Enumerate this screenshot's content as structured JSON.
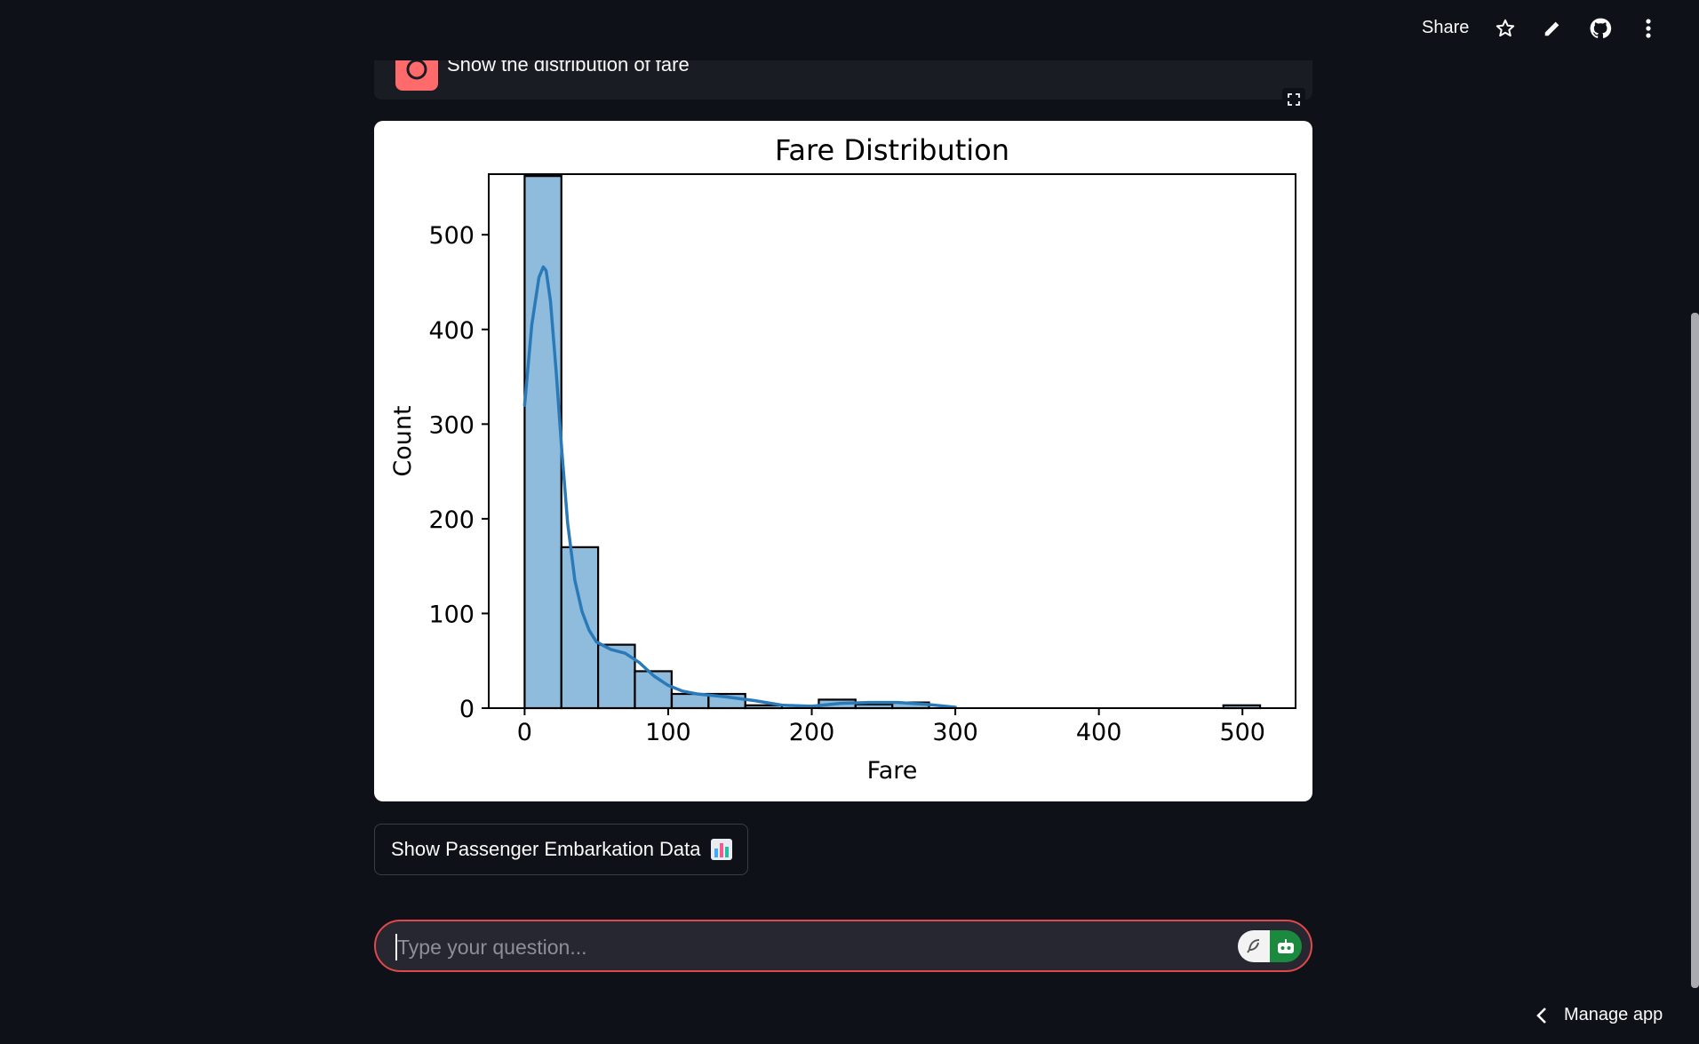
{
  "header": {
    "share_label": "Share",
    "icons": [
      "star-icon",
      "pencil-icon",
      "github-icon",
      "more-vertical-icon"
    ]
  },
  "user_message": {
    "text": "Show the distribution of fare",
    "avatar_color": "#ff6b6b"
  },
  "chart_data": {
    "type": "bar",
    "title": "Fare Distribution",
    "xlabel": "Fare",
    "ylabel": "Count",
    "xlim": [
      -25,
      537
    ],
    "ylim": [
      0,
      564
    ],
    "x_ticks": [
      0,
      100,
      200,
      300,
      400,
      500
    ],
    "y_ticks": [
      0,
      100,
      200,
      300,
      400,
      500
    ],
    "bin_width": 25.6,
    "bin_starts": [
      0,
      25.6,
      51.2,
      76.8,
      102.5,
      128.1,
      153.7,
      179.3,
      204.9,
      230.5,
      256.1,
      281.7,
      307.4,
      333.0,
      358.6,
      384.2,
      409.8,
      435.4,
      461.0,
      486.7
    ],
    "values": [
      562,
      170,
      67,
      39,
      15,
      15,
      3,
      0,
      9,
      4,
      6,
      0,
      0,
      0,
      0,
      0,
      0,
      0,
      0,
      3
    ],
    "bar_color": "#8fbcdc",
    "kde": {
      "color": "#2a7ab9",
      "x": [
        0,
        5,
        10,
        13,
        15,
        18,
        22,
        26,
        30,
        35,
        40,
        45,
        50,
        60,
        70,
        80,
        90,
        100,
        110,
        120,
        140,
        160,
        180,
        200,
        220,
        240,
        260,
        280,
        300
      ],
      "y": [
        320,
        405,
        455,
        466,
        462,
        430,
        355,
        270,
        195,
        135,
        102,
        82,
        70,
        62,
        58,
        48,
        34,
        24,
        18,
        15,
        12,
        8,
        3,
        2,
        5,
        6,
        6,
        4,
        1
      ]
    }
  },
  "embark_button": {
    "label": "Show Passenger Embarkation Data",
    "emoji": "bar-chart-icon"
  },
  "chat_input": {
    "placeholder": "Type your question..."
  },
  "footer": {
    "manage_label": "Manage app"
  },
  "colors": {
    "background": "#0e1117",
    "accent": "#ff4b4b",
    "input_border": "#e0484a"
  }
}
